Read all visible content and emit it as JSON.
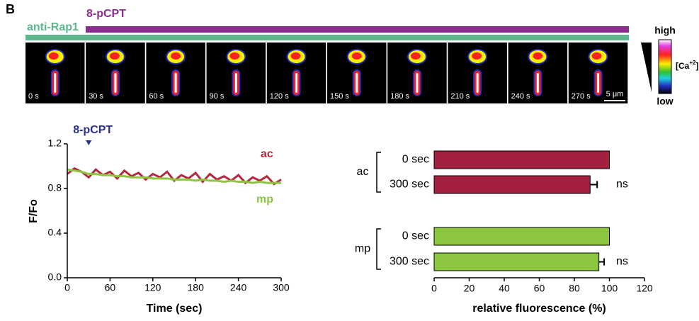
{
  "panel_label": "B",
  "treatment_bars": [
    {
      "label": "anti-Rap1",
      "color": "#5cb88a"
    },
    {
      "label": "8-pCPT",
      "color": "#8b2c8f"
    }
  ],
  "frames": [
    "0 s",
    "30 s",
    "60 s",
    "90 s",
    "120 s",
    "150 s",
    "180 s",
    "210 s",
    "240 s",
    "270 s"
  ],
  "scale_bar": "5 μm",
  "colorbar": {
    "high": "high",
    "low": "low",
    "label": "[Ca",
    "superscript": "+2",
    "label_end": "]"
  },
  "chart_data": [
    {
      "type": "line",
      "ylabel": "F/Fo",
      "xlabel": "Time (sec)",
      "annotation": {
        "text": "8-pCPT",
        "x": 30
      },
      "x": [
        0,
        10,
        20,
        30,
        40,
        50,
        60,
        70,
        80,
        90,
        100,
        110,
        120,
        130,
        140,
        150,
        160,
        170,
        180,
        190,
        200,
        210,
        220,
        230,
        240,
        250,
        260,
        270,
        280,
        290,
        300
      ],
      "series": [
        {
          "name": "ac",
          "color": "#b5283f",
          "values": [
            0.93,
            0.98,
            0.95,
            0.9,
            0.97,
            0.92,
            0.95,
            0.89,
            0.96,
            0.91,
            0.94,
            0.88,
            0.93,
            0.9,
            0.95,
            0.87,
            0.92,
            0.89,
            0.94,
            0.86,
            0.93,
            0.88,
            0.91,
            0.87,
            0.92,
            0.85,
            0.9,
            0.87,
            0.91,
            0.84,
            0.88
          ]
        },
        {
          "name": "mp",
          "color": "#8cc63f",
          "values": [
            0.97,
            0.96,
            0.95,
            0.93,
            0.93,
            0.92,
            0.92,
            0.91,
            0.91,
            0.9,
            0.9,
            0.9,
            0.89,
            0.89,
            0.89,
            0.88,
            0.88,
            0.88,
            0.87,
            0.88,
            0.87,
            0.87,
            0.86,
            0.87,
            0.86,
            0.86,
            0.85,
            0.86,
            0.85,
            0.85,
            0.85
          ]
        }
      ],
      "xlim": [
        0,
        300
      ],
      "xticks": [
        0,
        60,
        120,
        180,
        240,
        300
      ],
      "ylim": [
        0,
        1.2
      ],
      "yticks": [
        {
          "value": 0,
          "label": "0.0"
        },
        0.4,
        0.8,
        1.2
      ]
    },
    {
      "type": "hbar",
      "xlabel": "relative fluorescence (%)",
      "groups": [
        {
          "name": "ac",
          "color": "#a3203f",
          "categories": [
            "0 sec",
            "300 sec"
          ],
          "values": [
            100,
            89
          ],
          "errors": [
            null,
            4
          ],
          "value_annotations": [
            null,
            "ns"
          ]
        },
        {
          "name": "mp",
          "color": "#8cc63f",
          "categories": [
            "0 sec",
            "300 sec"
          ],
          "values": [
            100,
            94
          ],
          "errors": [
            null,
            3
          ],
          "value_annotations": [
            null,
            "ns"
          ]
        }
      ],
      "xlim": [
        0,
        120
      ],
      "xticks": [
        0,
        20,
        40,
        60,
        80,
        100,
        120
      ]
    }
  ]
}
